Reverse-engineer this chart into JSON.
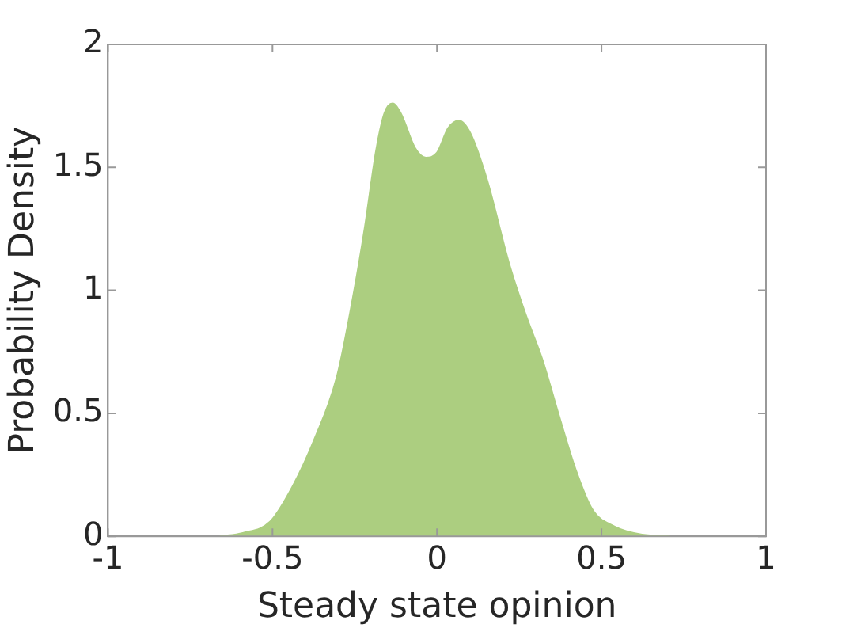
{
  "chart_data": {
    "type": "area",
    "xlabel": "Steady state opinion",
    "ylabel": "Probability Density",
    "x": [
      -0.66,
      -0.59,
      -0.507,
      -0.44,
      -0.371,
      -0.304,
      -0.253,
      -0.219,
      -0.185,
      -0.16,
      -0.135,
      -0.11,
      -0.067,
      -0.034,
      0,
      0.034,
      0.067,
      0.101,
      0.152,
      0.219,
      0.27,
      0.32,
      0.371,
      0.422,
      0.472,
      0.54,
      0.624,
      0.708
    ],
    "series": [
      {
        "color": "#acce80",
        "values": [
          0,
          0.014,
          0.06,
          0.2,
          0.4,
          0.65,
          0.99,
          1.26,
          1.57,
          1.72,
          1.76,
          1.72,
          1.58,
          1.54,
          1.56,
          1.66,
          1.69,
          1.64,
          1.45,
          1.11,
          0.9,
          0.72,
          0.49,
          0.27,
          0.11,
          0.04,
          0.007,
          0
        ]
      }
    ],
    "xlim": [
      -1,
      1
    ],
    "xticks": [
      -1,
      -0.5,
      0,
      0.5,
      1
    ],
    "ylim": [
      0,
      2
    ],
    "yticks": [
      0,
      0.5,
      1,
      1.5,
      2
    ],
    "grid": false,
    "legend": false
  }
}
